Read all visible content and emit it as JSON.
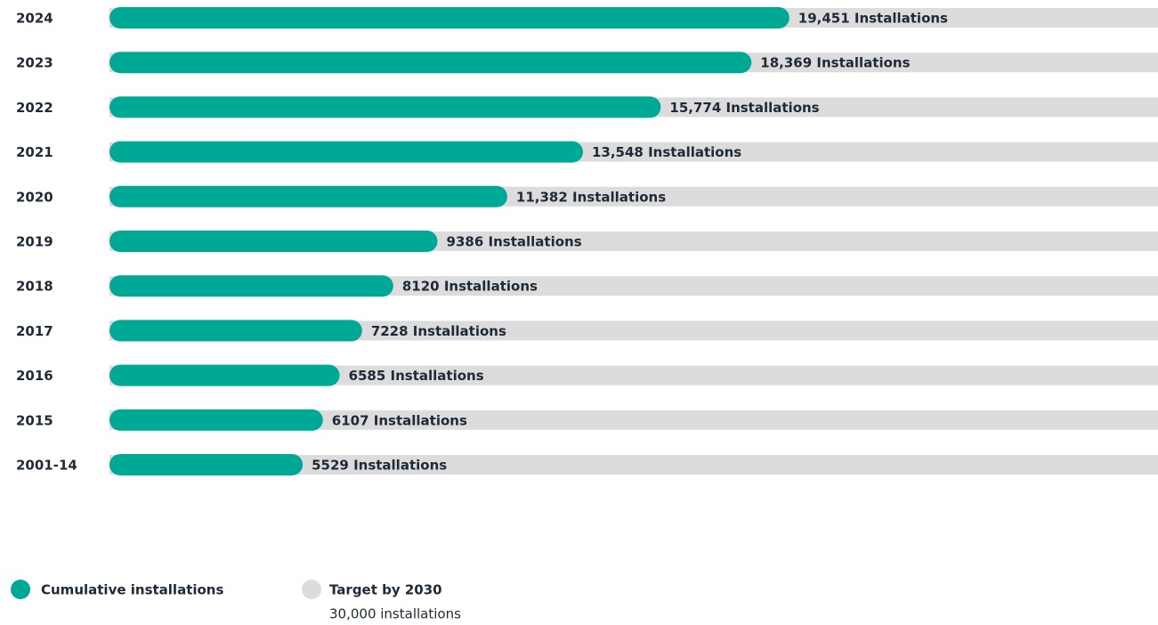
{
  "chart_data": {
    "type": "bar",
    "orientation": "horizontal",
    "categories": [
      "2024",
      "2023",
      "2022",
      "2021",
      "2020",
      "2019",
      "2018",
      "2017",
      "2016",
      "2015",
      "2001-14"
    ],
    "series": [
      {
        "name": "Cumulative installations",
        "color": "#00a896",
        "values": [
          19451,
          18369,
          15774,
          13548,
          11382,
          9386,
          8120,
          7228,
          6585,
          6107,
          5529
        ],
        "value_labels": [
          "19,451 Installations",
          "18,369 Installations",
          "15,774 Installations",
          "13,548 Installations",
          "11,382 Installations",
          "9386 Installations",
          "8120 Installations",
          "7228 Installations",
          "6585 Installations",
          "6107 Installations",
          "5529 Installations"
        ]
      }
    ],
    "target": {
      "name": "Target by 2030",
      "value": 30000,
      "label": "30,000 installations",
      "color": "#dcdcdc"
    },
    "xlim": [
      0,
      30000
    ]
  }
}
